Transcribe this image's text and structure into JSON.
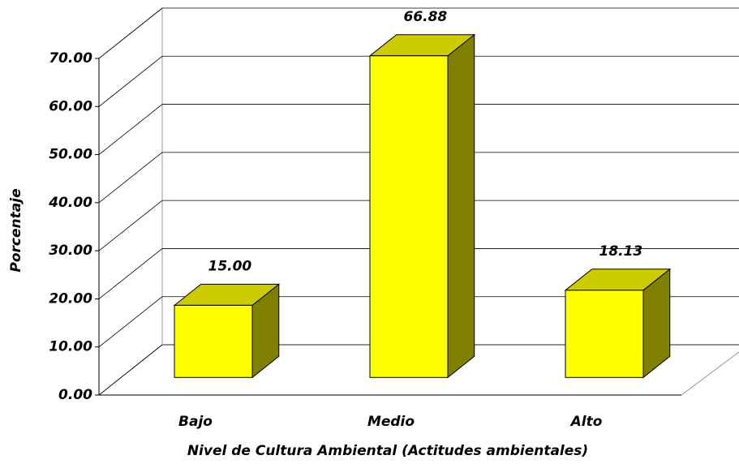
{
  "chart_data": {
    "type": "bar",
    "x_label": "Nivel de Cultura Ambiental (Actitudes ambientales)",
    "y_label": "Porcentaje",
    "categories": [
      "Bajo",
      "Medio",
      "Alto"
    ],
    "values": [
      15,
      66.88,
      18.13
    ],
    "value_labels": [
      "15.00",
      "66.88",
      "18.13"
    ],
    "color": "#ffff00",
    "ylim": [
      0,
      70
    ],
    "yticks": [
      {
        "value": 0,
        "label": "0.00"
      },
      {
        "value": 10,
        "label": "10.00"
      },
      {
        "value": 20,
        "label": "20.00"
      },
      {
        "value": 30,
        "label": "30.00"
      },
      {
        "value": 40,
        "label": "40.00"
      },
      {
        "value": 50,
        "label": "50.00"
      },
      {
        "value": 60,
        "label": "60.00"
      },
      {
        "value": 70,
        "label": "70.00"
      }
    ],
    "grid": true
  }
}
